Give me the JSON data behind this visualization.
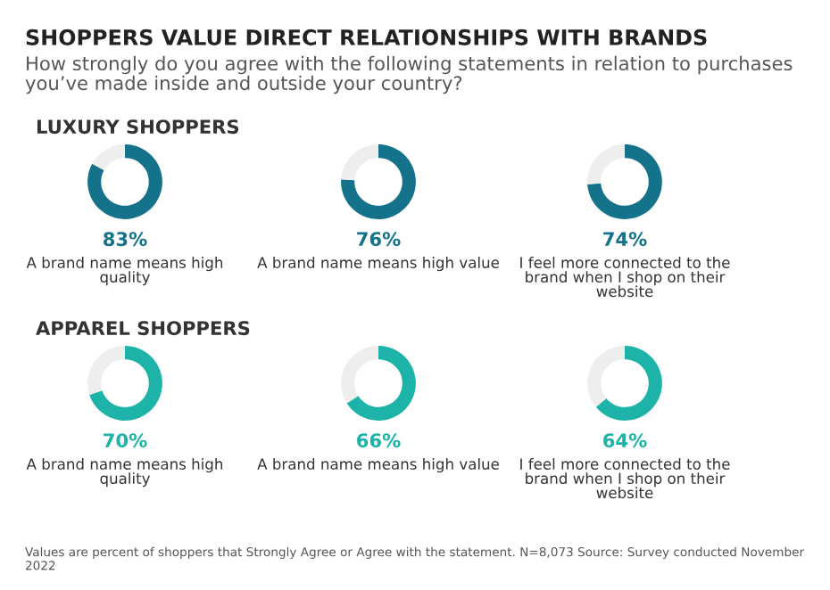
{
  "chart_data": [
    {
      "type": "other",
      "title": "SHOPPERS VALUE DIRECT RELATIONSHIPS WITH BRANDS",
      "subtitle": "How strongly do you agree with the following statements in relation to purchases you’ve made inside and outside your country?",
      "annotations": [
        "Values are percent of shoppers that Strongly Agree or Agree with the statement. N=8,073 Source: Survey conducted November 2022"
      ]
    },
    {
      "type": "donut",
      "title": "LUXURY SHOPPERS",
      "categories": [
        "A brand name means high quality",
        null
      ],
      "values": [
        83,
        17
      ],
      "colors": [
        "#14728a",
        "#eeeeee"
      ],
      "value_labels": [
        "83%",
        null
      ]
    },
    {
      "type": "donut",
      "categories": [
        "A brand name means high value",
        null
      ],
      "values": [
        76,
        24
      ],
      "colors": [
        "#14728a",
        "#eeeeee"
      ],
      "value_labels": [
        "76%",
        null
      ]
    },
    {
      "type": "donut",
      "categories": [
        "I feel more connected to the brand when I shop on their website",
        null
      ],
      "values": [
        74,
        26
      ],
      "colors": [
        "#14728a",
        "#eeeeee"
      ],
      "value_labels": [
        "74%",
        null
      ]
    },
    {
      "type": "donut",
      "title": "APPAREL SHOPPERS",
      "categories": [
        "A brand name means high quality",
        null
      ],
      "values": [
        70,
        30
      ],
      "colors": [
        "#1db3a8",
        "#eeeeee"
      ],
      "value_labels": [
        "70%",
        null
      ]
    },
    {
      "type": "donut",
      "categories": [
        "A brand name means high value",
        null
      ],
      "values": [
        66,
        34
      ],
      "colors": [
        "#1db3a8",
        "#eeeeee"
      ],
      "value_labels": [
        "66%",
        null
      ]
    },
    {
      "type": "donut",
      "categories": [
        "I feel more connected to the brand when I shop on their website",
        null
      ],
      "values": [
        64,
        36
      ],
      "colors": [
        "#1db3a8",
        "#eeeeee"
      ],
      "value_labels": [
        "64%",
        null
      ]
    }
  ]
}
